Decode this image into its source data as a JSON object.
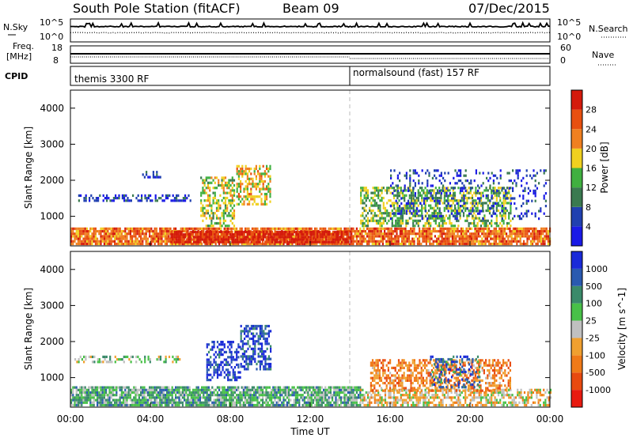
{
  "header": {
    "station": "South Pole Station (fitACF)",
    "beam": "Beam 09",
    "date": "07/Dec/2015"
  },
  "strip_labels": {
    "nsky": "N.Sky",
    "nsky_top": "10^5",
    "nsky_bottom": "10^0",
    "nsearch": "N.Search",
    "nsearch_top": "10^5",
    "nsearch_bottom": "10^0",
    "freq_1": "Freq.",
    "freq_2": "[MHz]",
    "freq_top": "18",
    "freq_bottom": "8",
    "nave": "Nave",
    "nave_top": "60",
    "nave_bottom": "0",
    "cpid": "CPID",
    "cpid_1": "themis 3300 RF",
    "cpid_2": "normalsound (fast) 157 RF"
  },
  "colors": {
    "power": [
      "#1a1ae6",
      "#2040b0",
      "#3a7a50",
      "#40b040",
      "#f0d020",
      "#f08020",
      "#e85010",
      "#d41a0c"
    ],
    "velocity": [
      "#1a2ad8",
      "#2a5ab0",
      "#3a8a6a",
      "#48c048",
      "#c0c0c0",
      "#f0a030",
      "#f07a18",
      "#e84a10",
      "#e81a10"
    ]
  },
  "chart_data": [
    {
      "type": "heatmap",
      "panel": "power",
      "ylabel": "Slant Range [km]",
      "yticks": [
        "1000",
        "2000",
        "3000",
        "4000"
      ],
      "ylim": [
        180,
        4500
      ],
      "xlim": [
        0,
        24
      ],
      "colorbar_label": "Power [dB]",
      "colorbar_ticks": [
        "4",
        "8",
        "12",
        "16",
        "20",
        "24",
        "28"
      ],
      "crange": [
        0,
        32
      ],
      "regions": [
        {
          "t": [
            0,
            24
          ],
          "r": [
            200,
            650
          ],
          "level": 0.75,
          "density": 0.85
        },
        {
          "t": [
            5,
            14
          ],
          "r": [
            250,
            550
          ],
          "level": 0.95,
          "density": 0.9
        },
        {
          "t": [
            0.3,
            6
          ],
          "r": [
            1400,
            1560
          ],
          "level": 0.15,
          "density": 0.5
        },
        {
          "t": [
            3.5,
            4.5
          ],
          "r": [
            2050,
            2250
          ],
          "level": 0.1,
          "density": 0.5
        },
        {
          "t": [
            6.5,
            8.2
          ],
          "r": [
            700,
            2100
          ],
          "level": 0.5,
          "density": 0.5
        },
        {
          "t": [
            8.3,
            10
          ],
          "r": [
            1300,
            2400
          ],
          "level": 0.6,
          "density": 0.55
        },
        {
          "t": [
            14.5,
            22
          ],
          "r": [
            700,
            1800
          ],
          "level": 0.45,
          "density": 0.55
        },
        {
          "t": [
            16,
            23.8
          ],
          "r": [
            900,
            2300
          ],
          "level": 0.15,
          "density": 0.2
        }
      ]
    },
    {
      "type": "heatmap",
      "panel": "velocity",
      "ylabel": "Slant Range [km]",
      "yticks": [
        "1000",
        "2000",
        "3000",
        "4000"
      ],
      "ylim": [
        180,
        4500
      ],
      "xlim": [
        0,
        24
      ],
      "xlabel": "Time UT",
      "xticks": [
        "00:00",
        "04:00",
        "08:00",
        "12:00",
        "16:00",
        "20:00",
        "00:00"
      ],
      "colorbar_label": "Velocity [m s^-1]",
      "colorbar_ticks": [
        "1000",
        "500",
        "100",
        "25",
        "-25",
        "-100",
        "-500",
        "-1000"
      ],
      "regions": [
        {
          "t": [
            0,
            14.5
          ],
          "r": [
            200,
            700
          ],
          "level": 0.35,
          "density": 0.85
        },
        {
          "t": [
            14.5,
            24
          ],
          "r": [
            200,
            650
          ],
          "level": 0.55,
          "density": 0.6
        },
        {
          "t": [
            0.2,
            5.5
          ],
          "r": [
            1400,
            1550
          ],
          "level": 0.45,
          "density": 0.4
        },
        {
          "t": [
            6.8,
            8.5
          ],
          "r": [
            900,
            2000
          ],
          "level": 0.1,
          "density": 0.5
        },
        {
          "t": [
            8.5,
            10
          ],
          "r": [
            1200,
            2400
          ],
          "level": 0.12,
          "density": 0.55
        },
        {
          "t": [
            15,
            22
          ],
          "r": [
            600,
            1500
          ],
          "level": 0.7,
          "density": 0.55
        },
        {
          "t": [
            18,
            20.5
          ],
          "r": [
            700,
            1600
          ],
          "level": 0.2,
          "density": 0.3
        }
      ]
    }
  ]
}
